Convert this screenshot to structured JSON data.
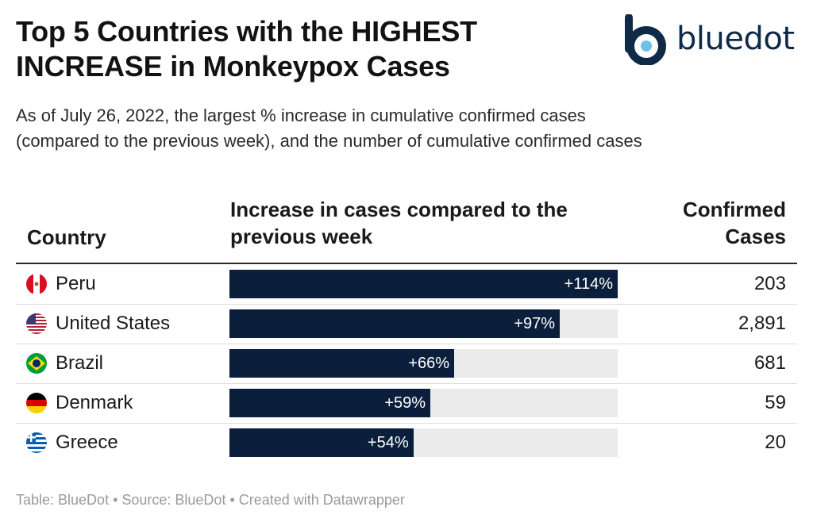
{
  "title_line1": "Top 5 Countries with the HIGHEST",
  "title_line2": "INCREASE in Monkeypox Cases",
  "logo_text": "bluedot",
  "subtitle_line1": "As of July 26, 2022, the largest % increase in cumulative confirmed cases",
  "subtitle_line2": "(compared to the previous week), and the number of cumulative confirmed cases",
  "colors": {
    "bar": "#0b1f3c",
    "track": "#ebebeb",
    "logo": "#0e2a47",
    "logo_dot": "#6ec1e4"
  },
  "chart_data": {
    "type": "table",
    "columns": {
      "country": "Country",
      "increase_line1": "Increase in cases compared to the",
      "increase_line2": "previous week",
      "cases_line1": "Confirmed",
      "cases_line2": "Cases"
    },
    "scale_max": 114,
    "rows": [
      {
        "country": "Peru",
        "flag": "peru-flag-icon",
        "increase": 114,
        "increase_label": "+114%",
        "cases": "203"
      },
      {
        "country": "United States",
        "flag": "usa-flag-icon",
        "increase": 97,
        "increase_label": "+97%",
        "cases": "2,891"
      },
      {
        "country": "Brazil",
        "flag": "brazil-flag-icon",
        "increase": 66,
        "increase_label": "+66%",
        "cases": "681"
      },
      {
        "country": "Denmark",
        "flag": "denmark-flag-icon",
        "increase": 59,
        "increase_label": "+59%",
        "cases": "59"
      },
      {
        "country": "Greece",
        "flag": "greece-flag-icon",
        "increase": 54,
        "increase_label": "+54%",
        "cases": "20"
      }
    ]
  },
  "footer": "Table: BlueDot • Source: BlueDot • Created with Datawrapper"
}
